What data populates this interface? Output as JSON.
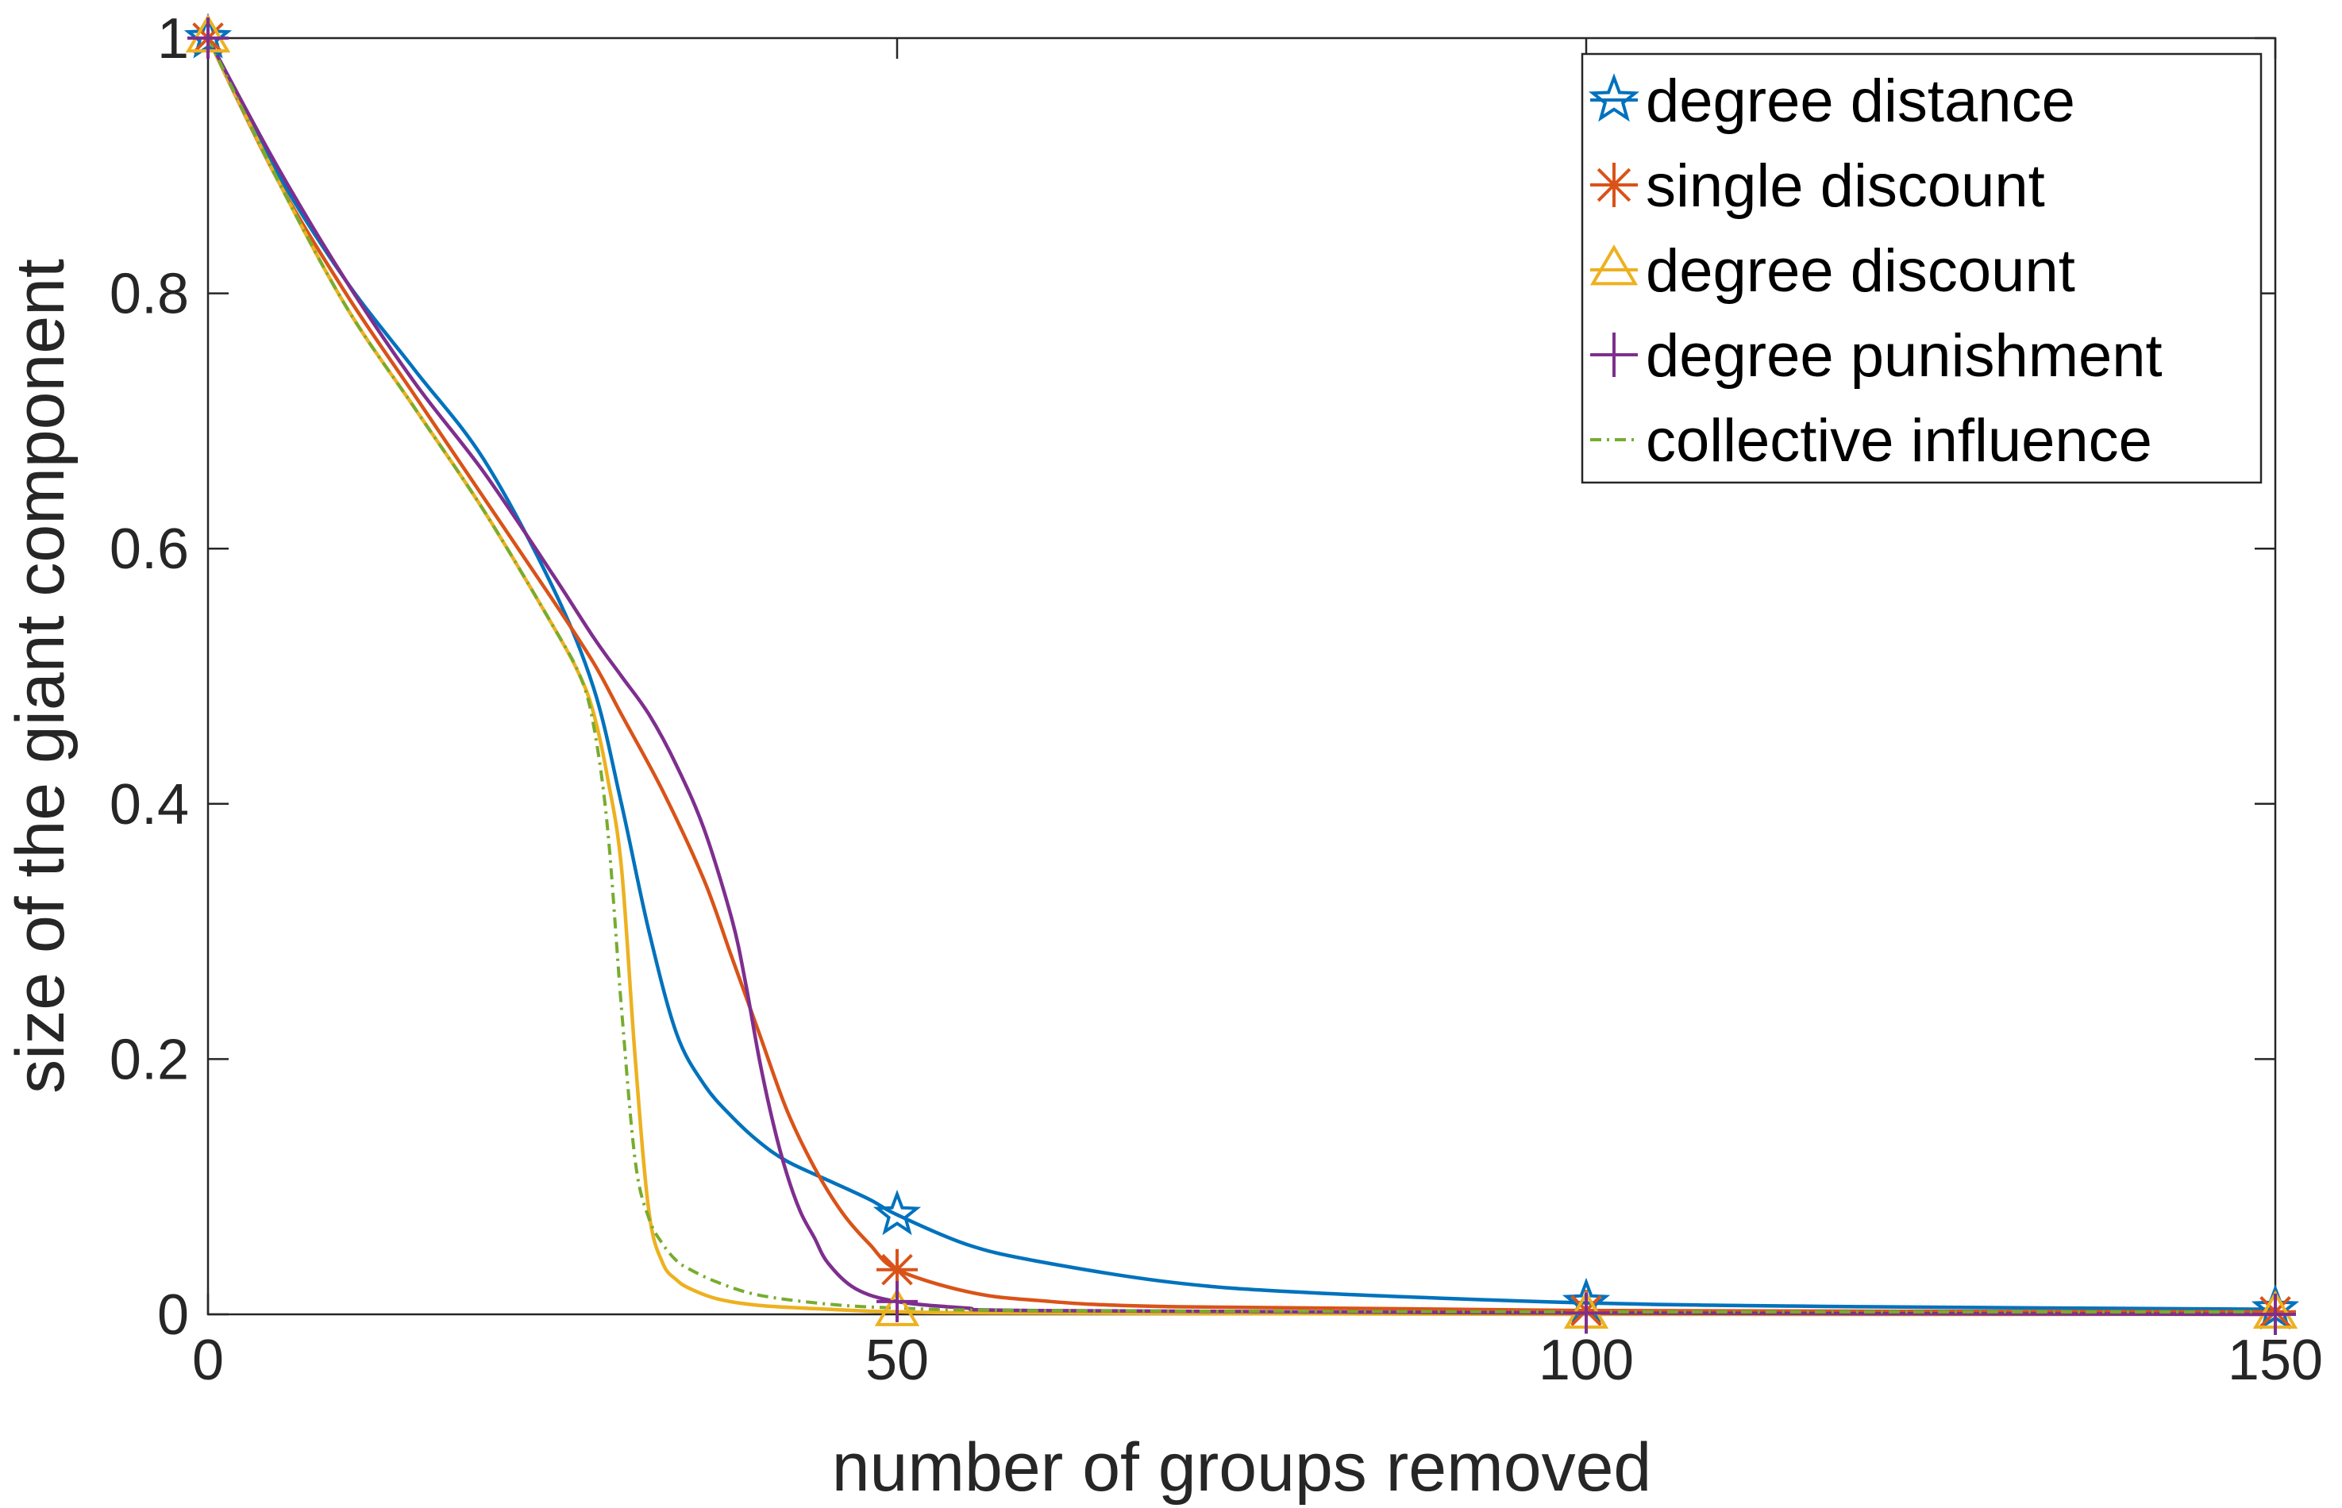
{
  "chart_data": {
    "type": "line",
    "title": "",
    "xlabel": "number of groups removed",
    "ylabel": "size of the giant component",
    "xlim": [
      0,
      150
    ],
    "ylim": [
      0,
      1
    ],
    "xticks": [
      0,
      50,
      100,
      150
    ],
    "yticks": [
      0,
      0.2,
      0.4,
      0.6,
      0.8,
      1
    ],
    "xtick_labels": [
      "0",
      "50",
      "100",
      "150"
    ],
    "ytick_labels": [
      "0",
      "0.2",
      "0.4",
      "0.6",
      "0.8",
      "1"
    ],
    "grid": false,
    "legend_position": "top-right",
    "series": [
      {
        "name": "degree distance",
        "color": "#0072BD",
        "line_style": "solid",
        "marker": "star",
        "marker_x": [
          0,
          50,
          100,
          150
        ],
        "x": [
          0,
          5,
          10,
          15,
          20,
          25,
          28,
          30,
          32,
          34,
          36,
          38,
          40,
          42,
          45,
          48,
          50,
          55,
          60,
          70,
          80,
          100,
          120,
          150
        ],
        "y": [
          1.0,
          0.895,
          0.81,
          0.74,
          0.67,
          0.57,
          0.49,
          0.4,
          0.3,
          0.22,
          0.18,
          0.155,
          0.135,
          0.12,
          0.105,
          0.09,
          0.078,
          0.055,
          0.042,
          0.025,
          0.017,
          0.009,
          0.006,
          0.004
        ]
      },
      {
        "name": "single discount",
        "color": "#D95319",
        "line_style": "solid",
        "marker": "asterisk",
        "marker_x": [
          0,
          50,
          100,
          150
        ],
        "x": [
          0,
          5,
          10,
          15,
          20,
          25,
          28,
          30,
          33,
          36,
          38,
          40,
          42,
          44,
          46,
          48,
          50,
          55,
          60,
          70,
          100,
          150
        ],
        "y": [
          1.0,
          0.89,
          0.8,
          0.72,
          0.64,
          0.56,
          0.51,
          0.47,
          0.41,
          0.34,
          0.28,
          0.22,
          0.16,
          0.115,
          0.08,
          0.055,
          0.035,
          0.018,
          0.011,
          0.006,
          0.003,
          0.002
        ]
      },
      {
        "name": "degree discount",
        "color": "#EDB120",
        "line_style": "solid",
        "marker": "triangle",
        "marker_x": [
          0,
          50,
          100,
          150
        ],
        "x": [
          0,
          5,
          10,
          15,
          20,
          25,
          27,
          28,
          29,
          30,
          31,
          32,
          33,
          34,
          35,
          37,
          40,
          45,
          50,
          60,
          100,
          150
        ],
        "y": [
          1.0,
          0.89,
          0.79,
          0.71,
          0.63,
          0.54,
          0.5,
          0.47,
          0.42,
          0.35,
          0.2,
          0.08,
          0.04,
          0.027,
          0.02,
          0.012,
          0.007,
          0.004,
          0.002,
          0.001,
          0.0,
          0.0
        ]
      },
      {
        "name": "degree punishment",
        "color": "#7E2F8E",
        "line_style": "solid",
        "marker": "plus",
        "marker_x": [
          0,
          50,
          100,
          150
        ],
        "x": [
          0,
          5,
          10,
          15,
          20,
          25,
          28,
          30,
          32,
          34,
          36,
          38,
          39,
          40,
          41,
          42,
          43,
          44,
          45,
          47,
          50,
          55,
          60,
          100,
          150
        ],
        "y": [
          1.0,
          0.9,
          0.81,
          0.73,
          0.66,
          0.58,
          0.53,
          0.5,
          0.47,
          0.43,
          0.38,
          0.31,
          0.26,
          0.2,
          0.15,
          0.11,
          0.08,
          0.06,
          0.04,
          0.02,
          0.01,
          0.005,
          0.003,
          0.001,
          0.0
        ]
      },
      {
        "name": "collective influence",
        "color": "#77AC30",
        "line_style": "dashdot",
        "marker": "none",
        "marker_x": [],
        "x": [
          0,
          5,
          10,
          15,
          20,
          25,
          27,
          28,
          29,
          30,
          31,
          32,
          33,
          34,
          35,
          37,
          40,
          45,
          50,
          60,
          100,
          150
        ],
        "y": [
          1.0,
          0.89,
          0.79,
          0.71,
          0.63,
          0.54,
          0.5,
          0.46,
          0.38,
          0.24,
          0.12,
          0.075,
          0.055,
          0.042,
          0.035,
          0.025,
          0.015,
          0.008,
          0.005,
          0.003,
          0.002,
          0.002
        ]
      }
    ]
  }
}
